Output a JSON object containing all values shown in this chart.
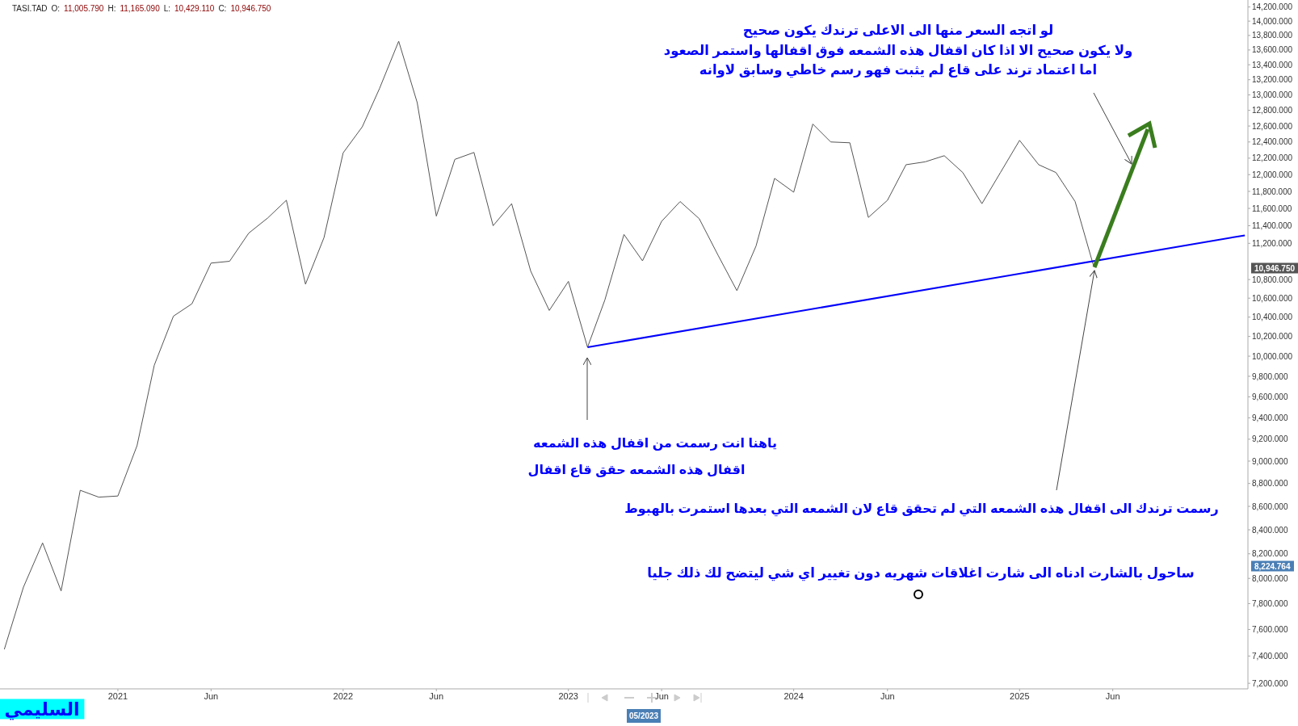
{
  "chart_data": {
    "type": "line",
    "log": "y",
    "line_style": "solid",
    "xlim": [
      "2020-06-24",
      "2026-01-06"
    ],
    "ylim": [
      7160,
      14300
    ],
    "xticks": [
      {
        "value": "2021-01",
        "label": "2021"
      },
      {
        "value": "2021-06",
        "label": "Jun"
      },
      {
        "value": "2022-01",
        "label": "2022"
      },
      {
        "value": "2022-06",
        "label": "Jun"
      },
      {
        "value": "2023-01",
        "label": "2023"
      },
      {
        "value": "2023-06",
        "label": "Jun"
      },
      {
        "value": "2024-01",
        "label": "2024"
      },
      {
        "value": "2024-06",
        "label": "Jun"
      },
      {
        "value": "2025-01",
        "label": "2025"
      },
      {
        "value": "2025-06",
        "label": "Jun"
      }
    ],
    "yticks": [
      {
        "value": 7200,
        "label": "7,200.000"
      },
      {
        "value": 7400,
        "label": "7,400.000"
      },
      {
        "value": 7600,
        "label": "7,600.000"
      },
      {
        "value": 7800,
        "label": "7,800.000"
      },
      {
        "value": 8000,
        "label": "8,000.000"
      },
      {
        "value": 8200,
        "label": "8,200.000"
      },
      {
        "value": 8400,
        "label": "8,400.000"
      },
      {
        "value": 8600,
        "label": "8,600.000"
      },
      {
        "value": 8800,
        "label": "8,800.000"
      },
      {
        "value": 9000,
        "label": "9,000.000"
      },
      {
        "value": 9200,
        "label": "9,200.000"
      },
      {
        "value": 9400,
        "label": "9,400.000"
      },
      {
        "value": 9600,
        "label": "9,600.000"
      },
      {
        "value": 9800,
        "label": "9,800.000"
      },
      {
        "value": 10000,
        "label": "10,000.000"
      },
      {
        "value": 10200,
        "label": "10,200.000"
      },
      {
        "value": 10400,
        "label": "10,400.000"
      },
      {
        "value": 10600,
        "label": "10,600.000"
      },
      {
        "value": 10800,
        "label": "10,800.000"
      },
      {
        "value": 11200,
        "label": "11,200.000"
      },
      {
        "value": 11400,
        "label": "11,400.000"
      },
      {
        "value": 11600,
        "label": "11,600.000"
      },
      {
        "value": 11800,
        "label": "11,800.000"
      },
      {
        "value": 12000,
        "label": "12,000.000"
      },
      {
        "value": 12200,
        "label": "12,200.000"
      },
      {
        "value": 12400,
        "label": "12,400.000"
      },
      {
        "value": 12600,
        "label": "12,600.000"
      },
      {
        "value": 12800,
        "label": "12,800.000"
      },
      {
        "value": 13000,
        "label": "13,000.000"
      },
      {
        "value": 13200,
        "label": "13,200.000"
      },
      {
        "value": 13400,
        "label": "13,400.000"
      },
      {
        "value": 13600,
        "label": "13,600.000"
      },
      {
        "value": 13800,
        "label": "13,800.000"
      },
      {
        "value": 14000,
        "label": "14,000.000"
      },
      {
        "value": 14200,
        "label": "14,200.000"
      }
    ],
    "x": [
      "2020-07",
      "2020-08",
      "2020-09",
      "2020-10",
      "2020-11",
      "2020-12",
      "2021-01",
      "2021-02",
      "2021-03",
      "2021-04",
      "2021-05",
      "2021-06",
      "2021-07",
      "2021-08",
      "2021-09",
      "2021-10",
      "2021-11",
      "2021-12",
      "2022-01",
      "2022-02",
      "2022-03",
      "2022-04",
      "2022-05",
      "2022-06",
      "2022-07",
      "2022-08",
      "2022-09",
      "2022-10",
      "2022-11",
      "2022-12",
      "2023-01",
      "2023-02",
      "2023-03",
      "2023-04",
      "2023-05",
      "2023-06",
      "2023-07",
      "2023-08",
      "2023-09",
      "2023-10",
      "2023-11",
      "2023-12",
      "2024-01",
      "2024-02",
      "2024-03",
      "2024-04",
      "2024-05",
      "2024-06",
      "2024-07",
      "2024-08",
      "2024-09",
      "2024-10",
      "2024-11",
      "2024-12",
      "2025-01",
      "2025-02",
      "2025-03",
      "2025-04",
      "2025-05"
    ],
    "series": [
      {
        "color": "#555555",
        "values": [
          7450,
          7930,
          8290,
          7900,
          8740,
          8680,
          8690,
          9140,
          9910,
          10410,
          10540,
          10980,
          11000,
          11315,
          11490,
          11695,
          10750,
          11265,
          12265,
          12590,
          13085,
          13720,
          12900,
          11510,
          12185,
          12270,
          11400,
          11655,
          10890,
          10470,
          10780,
          10090,
          10580,
          11300,
          11005,
          11450,
          11680,
          11480,
          11060,
          10680,
          11170,
          11955,
          11790,
          12625,
          12400,
          12390,
          11495,
          11695,
          12120,
          12155,
          12230,
          12025,
          11655,
          12025,
          12420,
          12120,
          12025,
          11680,
          10946.75
        ]
      },
      {
        "type": "line",
        "color": "#0000ff",
        "x": [
          "2023-02",
          "2026-01"
        ],
        "values": [
          10090,
          11290
        ]
      }
    ],
    "annotations": [
      "TASI.TAD O: 11,005.790 H: 11,165.090 L: 10,429.110 C: 10,946.750",
      "لو اتجه السعر منها الى الاعلى ترندك يكون صحيح",
      "ولا يكون صحيح الا اذا كان اقفال هذه الشمعه فوق اقفالها واستمر الصعود",
      "اما اعتماد ترند على قاع لم يثبت فهو رسم خاطي وسابق لاوانه",
      "ياهنا انت رسمت من اقفال هذه الشمعه",
      "اقفال هذه الشمعه حقق قاع اقفال",
      "رسمت ترندك الى اقفال هذه الشمعه التي لم تحقق قاع لان الشمعه التي بعدها استمرت بالهبوط",
      "ساحول بالشارت ادناه الى شارت اغلاقات شهريه دون تغيير اي شي ليتضح لك ذلك جليا",
      "السليمي",
      "05/2023",
      "10,946.750",
      "8,224.764"
    ]
  }
}
